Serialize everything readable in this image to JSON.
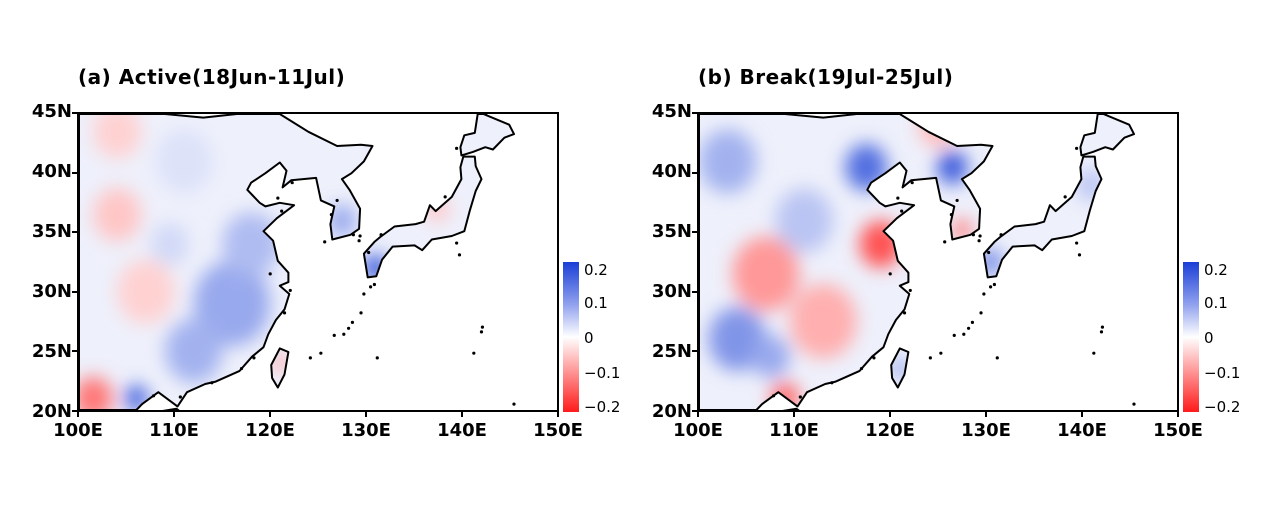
{
  "panels": [
    {
      "id": "a",
      "title": "(a) Active(18Jun-11Jul)"
    },
    {
      "id": "b",
      "title": "(b) Break(19Jul-25Jul)"
    }
  ],
  "axes": {
    "lat_labels": [
      "45N",
      "40N",
      "35N",
      "30N",
      "25N",
      "20N"
    ],
    "lon_labels": [
      "100E",
      "110E",
      "120E",
      "130E",
      "140E",
      "150E"
    ]
  },
  "colorbar": {
    "labels": [
      "0.2",
      "0.1",
      "0",
      "−0.1",
      "−0.2"
    ],
    "high_color": "#1a3fd6",
    "low_color": "#ff1a1a",
    "mid_color": "#ffffff"
  },
  "map_data": {
    "extent": {
      "lon": [
        100,
        150
      ],
      "lat": [
        20,
        45
      ]
    },
    "field_range": [
      -0.2,
      0.2
    ],
    "anomaly_blobs": {
      "a": [
        {
          "lon": 116,
          "lat": 29,
          "r": 4.0,
          "v": 0.09
        },
        {
          "lon": 118,
          "lat": 34,
          "r": 3.0,
          "v": 0.07
        },
        {
          "lon": 112,
          "lat": 25,
          "r": 3.0,
          "v": 0.08
        },
        {
          "lon": 106,
          "lat": 21,
          "r": 1.2,
          "v": 0.17
        },
        {
          "lon": 101.5,
          "lat": 21,
          "r": 2.0,
          "v": -0.12
        },
        {
          "lon": 127.5,
          "lat": 36,
          "r": 1.5,
          "v": 0.09
        },
        {
          "lon": 131,
          "lat": 32,
          "r": 1.2,
          "v": 0.19
        },
        {
          "lon": 104,
          "lat": 36.5,
          "r": 2.5,
          "v": -0.05
        },
        {
          "lon": 107,
          "lat": 30,
          "r": 3.0,
          "v": -0.04
        },
        {
          "lon": 109.5,
          "lat": 34,
          "r": 2.0,
          "v": 0.04
        },
        {
          "lon": 104,
          "lat": 43.5,
          "r": 2.5,
          "v": -0.04
        },
        {
          "lon": 111,
          "lat": 41,
          "r": 3.0,
          "v": 0.03
        },
        {
          "lon": 121,
          "lat": 24,
          "r": 0.8,
          "v": -0.09
        },
        {
          "lon": 133,
          "lat": 42,
          "r": 2.0,
          "v": 0.03
        },
        {
          "lon": 137.5,
          "lat": 37,
          "r": 1.2,
          "v": -0.05
        }
      ],
      "b": [
        {
          "lon": 117.5,
          "lat": 40.5,
          "r": 2.2,
          "v": 0.15
        },
        {
          "lon": 126.5,
          "lat": 40.5,
          "r": 1.6,
          "v": 0.17
        },
        {
          "lon": 119,
          "lat": 34,
          "r": 2.2,
          "v": -0.15
        },
        {
          "lon": 107,
          "lat": 31.5,
          "r": 3.5,
          "v": -0.09
        },
        {
          "lon": 113,
          "lat": 27.5,
          "r": 3.5,
          "v": -0.07
        },
        {
          "lon": 104,
          "lat": 26,
          "r": 3.0,
          "v": 0.11
        },
        {
          "lon": 107.5,
          "lat": 24.5,
          "r": 2.0,
          "v": 0.09
        },
        {
          "lon": 103,
          "lat": 41,
          "r": 3.0,
          "v": 0.08
        },
        {
          "lon": 111,
          "lat": 36,
          "r": 3.0,
          "v": 0.06
        },
        {
          "lon": 109,
          "lat": 21,
          "r": 1.5,
          "v": -0.13
        },
        {
          "lon": 121,
          "lat": 23.5,
          "r": 0.8,
          "v": 0.12
        },
        {
          "lon": 130.5,
          "lat": 32.5,
          "r": 1.2,
          "v": 0.13
        },
        {
          "lon": 127.5,
          "lat": 35.2,
          "r": 1.0,
          "v": -0.12
        },
        {
          "lon": 125,
          "lat": 44,
          "r": 2.0,
          "v": -0.06
        },
        {
          "lon": 141,
          "lat": 39,
          "r": 1.5,
          "v": 0.06
        }
      ]
    }
  }
}
